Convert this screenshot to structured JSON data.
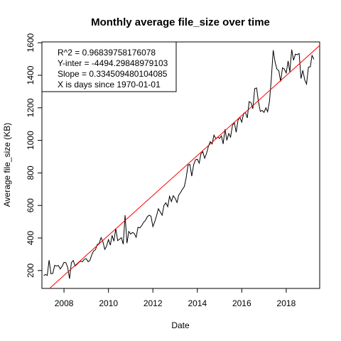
{
  "chart_data": {
    "type": "line",
    "title": "Monthly average file_size over time",
    "xlabel": "Date",
    "ylabel": "Average file_size (KB)",
    "xlim": [
      "2007-01-03",
      "2019-07-05"
    ],
    "ylim": [
      90,
      1605
    ],
    "x_ticks": [
      "2008",
      "2010",
      "2012",
      "2014",
      "2016",
      "2018"
    ],
    "y_ticks": [
      200,
      400,
      600,
      800,
      1000,
      1200,
      1400,
      1600
    ],
    "series": [
      {
        "color": "#000000",
        "points": [
          [
            "2007-02-01",
            168
          ],
          [
            "2007-03-01",
            176
          ],
          [
            "2007-04-01",
            170
          ],
          [
            "2007-05-01",
            264
          ],
          [
            "2007-06-01",
            180
          ],
          [
            "2007-07-01",
            182
          ],
          [
            "2007-08-01",
            232
          ],
          [
            "2007-09-01",
            228
          ],
          [
            "2007-10-01",
            231
          ],
          [
            "2007-11-01",
            210
          ],
          [
            "2007-12-01",
            226
          ],
          [
            "2008-01-01",
            250
          ],
          [
            "2008-02-01",
            248
          ],
          [
            "2008-03-01",
            220
          ],
          [
            "2008-04-01",
            150
          ],
          [
            "2008-05-01",
            248
          ],
          [
            "2008-06-01",
            262
          ],
          [
            "2008-07-01",
            228
          ],
          [
            "2008-08-01",
            238
          ],
          [
            "2008-09-01",
            250
          ],
          [
            "2008-10-01",
            258
          ],
          [
            "2008-11-01",
            254
          ],
          [
            "2008-12-01",
            270
          ],
          [
            "2009-01-01",
            272
          ],
          [
            "2009-02-01",
            254
          ],
          [
            "2009-03-01",
            262
          ],
          [
            "2009-04-01",
            296
          ],
          [
            "2009-05-01",
            320
          ],
          [
            "2009-06-01",
            328
          ],
          [
            "2009-07-01",
            360
          ],
          [
            "2009-08-01",
            366
          ],
          [
            "2009-09-01",
            402
          ],
          [
            "2009-10-01",
            378
          ],
          [
            "2009-11-01",
            330
          ],
          [
            "2009-12-01",
            350
          ],
          [
            "2010-01-01",
            390
          ],
          [
            "2010-02-01",
            356
          ],
          [
            "2010-03-01",
            416
          ],
          [
            "2010-04-01",
            380
          ],
          [
            "2010-05-01",
            458
          ],
          [
            "2010-06-01",
            384
          ],
          [
            "2010-07-01",
            392
          ],
          [
            "2010-08-01",
            402
          ],
          [
            "2010-09-01",
            362
          ],
          [
            "2010-10-01",
            540
          ],
          [
            "2010-11-01",
            368
          ],
          [
            "2010-12-01",
            440
          ],
          [
            "2011-01-01",
            424
          ],
          [
            "2011-02-01",
            434
          ],
          [
            "2011-03-01",
            428
          ],
          [
            "2011-04-01",
            404
          ],
          [
            "2011-05-01",
            466
          ],
          [
            "2011-06-01",
            462
          ],
          [
            "2011-07-01",
            476
          ],
          [
            "2011-08-01",
            496
          ],
          [
            "2011-09-01",
            508
          ],
          [
            "2011-10-01",
            530
          ],
          [
            "2011-11-01",
            540
          ],
          [
            "2011-12-01",
            534
          ],
          [
            "2012-01-01",
            470
          ],
          [
            "2012-02-01",
            500
          ],
          [
            "2012-03-01",
            536
          ],
          [
            "2012-04-01",
            580
          ],
          [
            "2012-05-01",
            560
          ],
          [
            "2012-06-01",
            540
          ],
          [
            "2012-07-01",
            600
          ],
          [
            "2012-08-01",
            616
          ],
          [
            "2012-09-01",
            592
          ],
          [
            "2012-10-01",
            656
          ],
          [
            "2012-11-01",
            624
          ],
          [
            "2012-12-01",
            660
          ],
          [
            "2013-01-01",
            644
          ],
          [
            "2013-02-01",
            618
          ],
          [
            "2013-03-01",
            664
          ],
          [
            "2013-04-01",
            680
          ],
          [
            "2013-05-01",
            700
          ],
          [
            "2013-06-01",
            716
          ],
          [
            "2013-07-01",
            770
          ],
          [
            "2013-08-01",
            848
          ],
          [
            "2013-09-01",
            852
          ],
          [
            "2013-10-01",
            780
          ],
          [
            "2013-11-01",
            850
          ],
          [
            "2013-12-01",
            880
          ],
          [
            "2014-01-01",
            884
          ],
          [
            "2014-02-01",
            860
          ],
          [
            "2014-03-01",
            918
          ],
          [
            "2014-04-01",
            930
          ],
          [
            "2014-05-01",
            890
          ],
          [
            "2014-06-01",
            920
          ],
          [
            "2014-07-01",
            962
          ],
          [
            "2014-08-01",
            992
          ],
          [
            "2014-09-01",
            978
          ],
          [
            "2014-10-01",
            1032
          ],
          [
            "2014-11-01",
            1010
          ],
          [
            "2014-12-01",
            1020
          ],
          [
            "2015-01-01",
            1012
          ],
          [
            "2015-02-01",
            1028
          ],
          [
            "2015-03-01",
            978
          ],
          [
            "2015-04-01",
            1068
          ],
          [
            "2015-05-01",
            1000
          ],
          [
            "2015-06-01",
            1042
          ],
          [
            "2015-07-01",
            1020
          ],
          [
            "2015-08-01",
            1092
          ],
          [
            "2015-09-01",
            1110
          ],
          [
            "2015-10-01",
            1050
          ],
          [
            "2015-11-01",
            1124
          ],
          [
            "2015-12-01",
            1142
          ],
          [
            "2016-01-01",
            1112
          ],
          [
            "2016-02-01",
            1166
          ],
          [
            "2016-03-01",
            1172
          ],
          [
            "2016-04-01",
            1138
          ],
          [
            "2016-05-01",
            1238
          ],
          [
            "2016-06-01",
            1232
          ],
          [
            "2016-07-01",
            1194
          ],
          [
            "2016-08-01",
            1318
          ],
          [
            "2016-09-01",
            1322
          ],
          [
            "2016-10-01",
            1238
          ],
          [
            "2016-11-01",
            1178
          ],
          [
            "2016-12-01",
            1184
          ],
          [
            "2017-01-01",
            1172
          ],
          [
            "2017-02-01",
            1200
          ],
          [
            "2017-03-01",
            1176
          ],
          [
            "2017-04-01",
            1240
          ],
          [
            "2017-05-01",
            1380
          ],
          [
            "2017-06-01",
            1554
          ],
          [
            "2017-07-01",
            1482
          ],
          [
            "2017-08-01",
            1438
          ],
          [
            "2017-09-01",
            1428
          ],
          [
            "2017-10-01",
            1362
          ],
          [
            "2017-11-01",
            1446
          ],
          [
            "2017-12-01",
            1438
          ],
          [
            "2018-01-01",
            1414
          ],
          [
            "2018-02-01",
            1488
          ],
          [
            "2018-03-01",
            1420
          ],
          [
            "2018-04-01",
            1558
          ],
          [
            "2018-05-01",
            1492
          ],
          [
            "2018-06-01",
            1530
          ],
          [
            "2018-07-01",
            1526
          ],
          [
            "2018-08-01",
            1534
          ],
          [
            "2018-09-01",
            1380
          ],
          [
            "2018-10-01",
            1430
          ],
          [
            "2018-11-01",
            1372
          ],
          [
            "2018-12-01",
            1346
          ],
          [
            "2019-01-01",
            1450
          ],
          [
            "2019-02-01",
            1452
          ],
          [
            "2019-03-01",
            1522
          ],
          [
            "2019-04-01",
            1498
          ]
        ]
      },
      {
        "color": "#ff0000",
        "points": [
          [
            "2007-01-03",
            48
          ],
          [
            "2019-07-05",
            1583
          ]
        ]
      }
    ],
    "legend": {
      "placement": "top-left",
      "entries": [
        "R^2 =  0.96839758176078",
        "Y-inter =  -4494.29848979103",
        "Slope =  0.334509480104085",
        "X is days since 1970-01-01"
      ]
    }
  }
}
